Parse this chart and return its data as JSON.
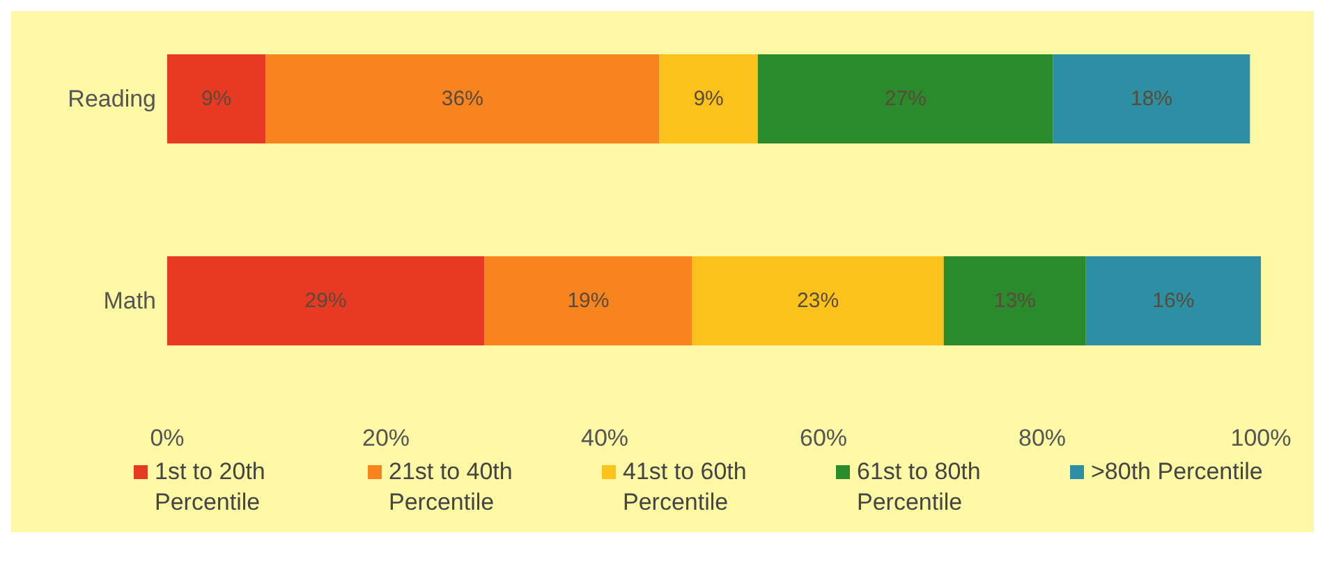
{
  "chart_data": {
    "type": "bar",
    "orientation": "horizontal",
    "stacked": true,
    "categories": [
      "Reading",
      "Math"
    ],
    "series": [
      {
        "name": "1st to 20th Percentile",
        "color": "#e83a22",
        "values": [
          9,
          29
        ],
        "value_labels": [
          "9%",
          "29%"
        ]
      },
      {
        "name": "21st to 40th Percentile",
        "color": "#f7841f",
        "values": [
          36,
          19
        ],
        "value_labels": [
          "36%",
          "19%"
        ]
      },
      {
        "name": "41st to 60th Percentile",
        "color": "#fcc21c",
        "values": [
          9,
          23
        ],
        "value_labels": [
          "9%",
          "23%"
        ]
      },
      {
        "name": "61st to 80th Percentile",
        "color": "#2a8a2c",
        "values": [
          27,
          13
        ],
        "value_labels": [
          "27%",
          "13%"
        ]
      },
      {
        "name": ">80th Percentile",
        "color": "#2c8fa3",
        "values": [
          18,
          16
        ],
        "value_labels": [
          "18%",
          "16%"
        ]
      }
    ],
    "xlim": [
      0,
      100
    ],
    "xticks": [
      {
        "value": 0,
        "label": "0%"
      },
      {
        "value": 20,
        "label": "20%"
      },
      {
        "value": 40,
        "label": "40%"
      },
      {
        "value": 60,
        "label": "60%"
      },
      {
        "value": 80,
        "label": "80%"
      },
      {
        "value": 100,
        "label": "100%"
      }
    ],
    "grid": false,
    "legend": "bottom"
  }
}
